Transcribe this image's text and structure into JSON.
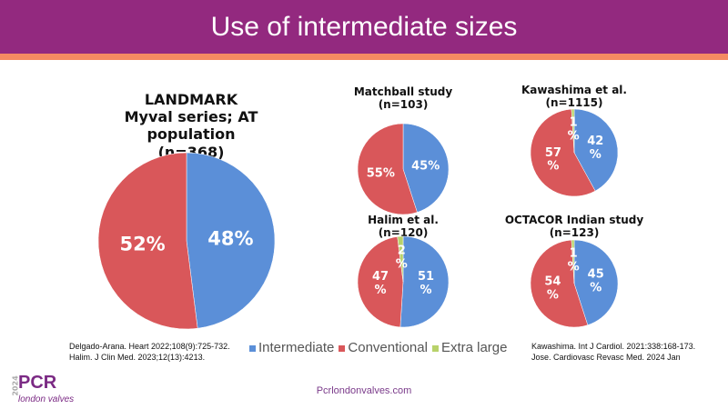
{
  "header": {
    "title": "Use of intermediate sizes"
  },
  "colors": {
    "intermediate": "#5b8fd8",
    "conventional": "#d9575a",
    "extra_large": "#b8d26a"
  },
  "chart_data": [
    {
      "type": "pie",
      "title": "LANDMARK\nMyval series; AT population\n(n=368)",
      "categories": [
        "Intermediate",
        "Conventional",
        "Extra large"
      ],
      "values": [
        48,
        52,
        0
      ],
      "labels": [
        "48%",
        "52%",
        ""
      ]
    },
    {
      "type": "pie",
      "title": "Matchball study\n(n=103)",
      "categories": [
        "Intermediate",
        "Conventional",
        "Extra large"
      ],
      "values": [
        45,
        55,
        0
      ],
      "labels": [
        "45%",
        "55%",
        ""
      ]
    },
    {
      "type": "pie",
      "title": "Kawashima et al.\n(n=1115)",
      "categories": [
        "Intermediate",
        "Conventional",
        "Extra large"
      ],
      "values": [
        42,
        57,
        1
      ],
      "labels": [
        "42\n%",
        "57\n%",
        "1\n%"
      ]
    },
    {
      "type": "pie",
      "title": "Halim et al.\n(n=120)",
      "categories": [
        "Intermediate",
        "Conventional",
        "Extra large"
      ],
      "values": [
        51,
        47,
        2
      ],
      "labels": [
        "51\n%",
        "47\n%",
        "2\n%"
      ]
    },
    {
      "type": "pie",
      "title": "OCTACOR Indian study\n(n=123)",
      "categories": [
        "Intermediate",
        "Conventional",
        "Extra large"
      ],
      "values": [
        45,
        54,
        1
      ],
      "labels": [
        "45\n%",
        "54\n%",
        "1\n%"
      ]
    }
  ],
  "legend": [
    "Intermediate",
    "Conventional",
    "Extra large"
  ],
  "citations_left": [
    "Delgado-Arana. Heart 2022;108(9):725-732.",
    "Halim. J Clin Med. 2023;12(13):4213."
  ],
  "citations_right": [
    "Kawashima. Int J Cardiol. 2021:338:168-173.",
    "Jose. Cardiovasc Revasc Med. 2024 Jan"
  ],
  "footer": {
    "url": "Pcrlondonvalves.com",
    "logo_year": "2024",
    "logo_name": "PCR",
    "logo_sub": "london valves"
  }
}
